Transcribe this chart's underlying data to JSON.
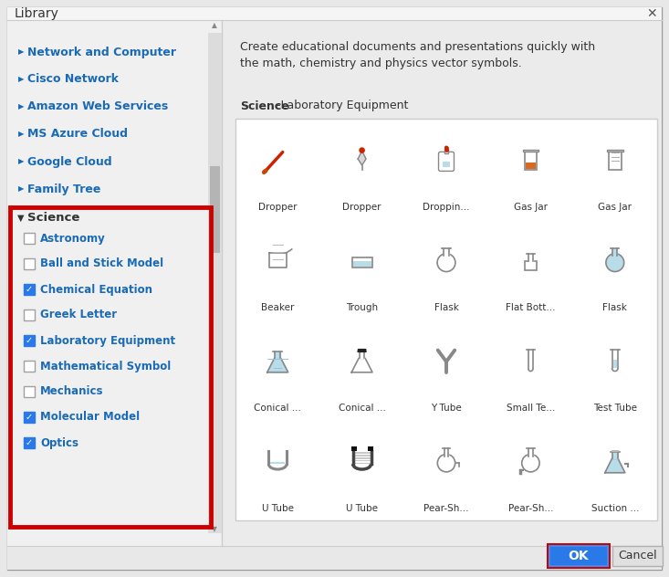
{
  "title": "Library",
  "bg_outer": "#e8e8e8",
  "bg_white": "#ffffff",
  "bg_left": "#f0f0f0",
  "bg_right": "#ebebeb",
  "sep_color": "#cccccc",
  "titlebar_bg": "#f5f5f5",
  "bottom_bg": "#e8e8e8",
  "blue_item": "#1a6ab5",
  "science_hdr": "#333333",
  "cb_blue": "#2979e8",
  "cb_border": "#a0a0a0",
  "red_border": "#cc0000",
  "ok_bg": "#2979e8",
  "ok_text": "#ffffff",
  "cancel_bg": "#e0e0e0",
  "cancel_border": "#b0b0b0",
  "cancel_text": "#333333",
  "icon_gray": "#888888",
  "icon_blue_fill": "#b8dde8",
  "icon_orange": "#d96820",
  "scrollbar_bg": "#dcdcdc",
  "scrollbar_thumb": "#b4b4b4",
  "top_items": [
    "Network and Computer",
    "Cisco Network",
    "Amazon Web Services",
    "MS Azure Cloud",
    "Google Cloud",
    "Family Tree"
  ],
  "science_subitems": [
    {
      "label": "Astronomy",
      "checked": false
    },
    {
      "label": "Ball and Stick Model",
      "checked": false
    },
    {
      "label": "Chemical Equation",
      "checked": true
    },
    {
      "label": "Greek Letter",
      "checked": false
    },
    {
      "label": "Laboratory Equipment",
      "checked": true
    },
    {
      "label": "Mathematical Symbol",
      "checked": false
    },
    {
      "label": "Mechanics",
      "checked": false
    },
    {
      "label": "Molecular Model",
      "checked": true
    },
    {
      "label": "Optics",
      "checked": true
    }
  ],
  "desc1": "Create educational documents and presentations quickly with",
  "desc2": "the math, chemistry and physics vector symbols.",
  "sec_bold": "Science",
  "sec_normal": "-Laboratory Equipment",
  "icon_labels": [
    [
      "Dropper",
      "Dropper",
      "Droppin...",
      "Gas Jar",
      "Gas Jar"
    ],
    [
      "Beaker",
      "Trough",
      "Flask",
      "Flat Bott...",
      "Flask"
    ],
    [
      "Conical ...",
      "Conical ...",
      "Y Tube",
      "Small Te...",
      "Test Tube"
    ],
    [
      "U Tube",
      "U Tube",
      "Pear-Sh...",
      "Pear-Sh...",
      "Suction ..."
    ]
  ]
}
